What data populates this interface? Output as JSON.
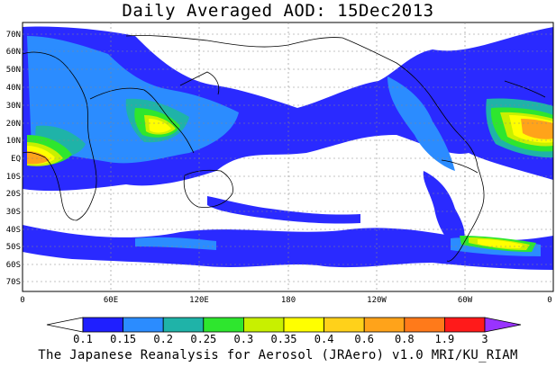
{
  "title": "Daily Averaged AOD: 15Dec2013",
  "credit": "The Japanese Reanalysis for Aerosol (JRAero) v1.0 MRI/KU_RIAM",
  "lat_labels": [
    "70N",
    "60N",
    "50N",
    "40N",
    "30N",
    "20N",
    "10N",
    "EQ",
    "10S",
    "20S",
    "30S",
    "40S",
    "50S",
    "60S",
    "70S"
  ],
  "lon_labels": [
    "0",
    "60E",
    "120E",
    "180",
    "120W",
    "60W",
    "0"
  ],
  "colorbar": {
    "colors": [
      "#ffffff",
      "#1f1fff",
      "#2b8cff",
      "#1fb3a8",
      "#2ee62e",
      "#c8f000",
      "#ffff00",
      "#ffd11a",
      "#ffa31a",
      "#ff7a1a",
      "#ff1a1a",
      "#9933ff"
    ],
    "ticks": [
      "0.1",
      "0.15",
      "0.2",
      "0.25",
      "0.3",
      "0.35",
      "0.4",
      "0.6",
      "0.8",
      "1.9",
      "3"
    ]
  }
}
